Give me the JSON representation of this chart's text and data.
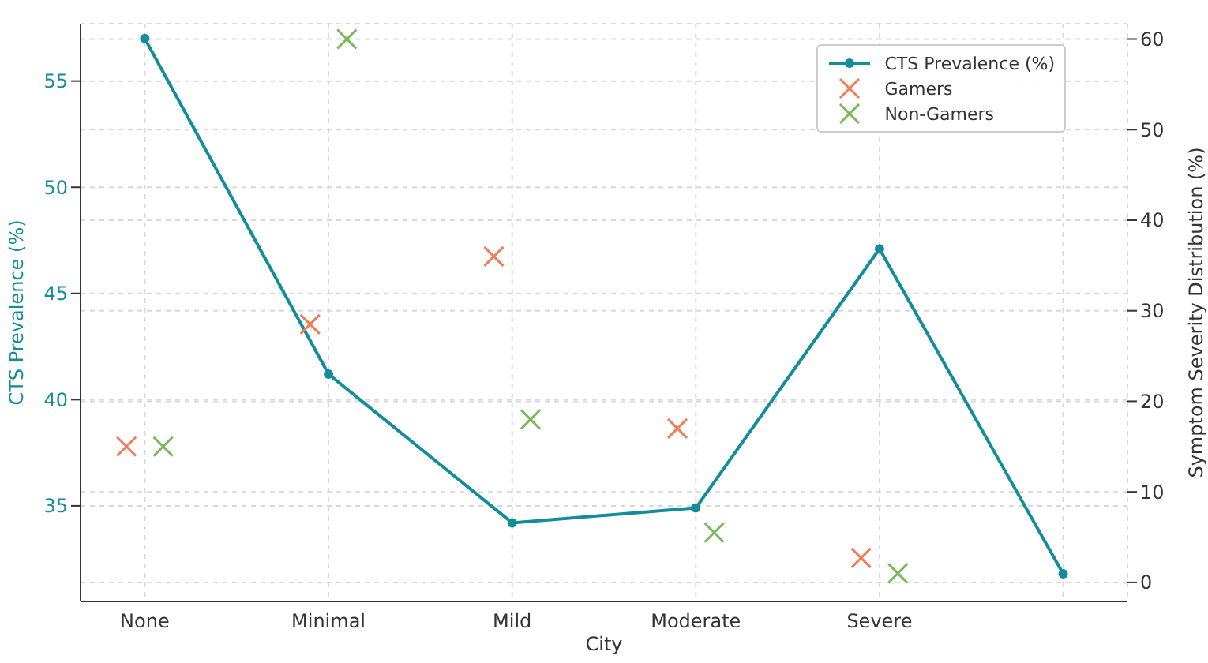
{
  "chart_data": {
    "type": "line",
    "xlabel": "City",
    "ylabel": "CTS Prevalence (%)",
    "y2label": "Symptom Severity Distribution (%)",
    "categories": [
      "None",
      "Minimal",
      "Mild",
      "Moderate",
      "Severe",
      null
    ],
    "series": [
      {
        "name": "CTS Prevalence (%)",
        "color": "#138d9b",
        "marker": "circle",
        "values": [
          57.0,
          41.2,
          34.2,
          34.9,
          47.1,
          31.8
        ]
      },
      {
        "name": "Gamers",
        "type": "scatter",
        "axis": "y2",
        "color": "#f07d58",
        "marker": "cross",
        "values": [
          15,
          28.5,
          36,
          17,
          2.7,
          null
        ]
      },
      {
        "name": "Non-Gamers",
        "type": "scatter",
        "axis": "y2",
        "color": "#7ab85c",
        "marker": "cross",
        "values": [
          15,
          60,
          18,
          5.5,
          1,
          null
        ]
      }
    ],
    "ylim": [
      30.5,
      57.7
    ],
    "yticks": [
      35,
      40,
      45,
      50,
      55
    ],
    "y2lim": [
      -2.1,
      61.7
    ],
    "y2ticks": [
      0,
      10,
      20,
      30,
      40,
      50,
      60
    ],
    "grid": true,
    "legend": "top right"
  }
}
